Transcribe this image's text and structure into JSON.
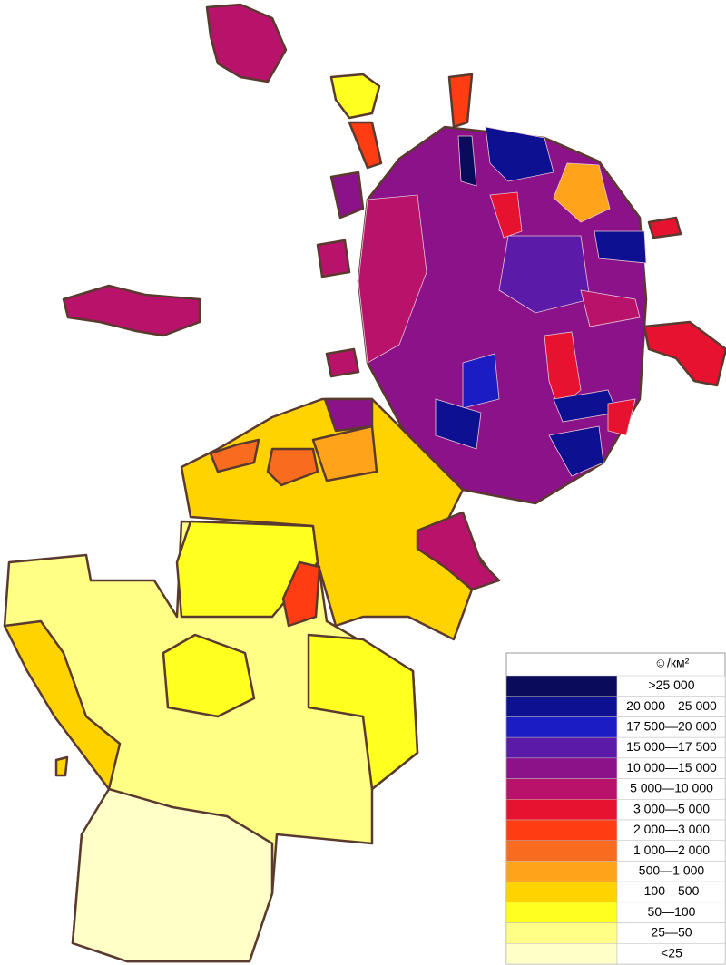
{
  "legend": {
    "title": "☺/км²",
    "items": [
      {
        "label": ">25 000",
        "color": "#0b0b5c"
      },
      {
        "label": "20 000—25 000",
        "color": "#0d1090"
      },
      {
        "label": "17 500—20 000",
        "color": "#1c1cc4"
      },
      {
        "label": "15 000—17 500",
        "color": "#5c1aa8"
      },
      {
        "label": "10 000—15 000",
        "color": "#8c1289"
      },
      {
        "label": "5 000—10 000",
        "color": "#b8126a"
      },
      {
        "label": "3 000—5 000",
        "color": "#e6122f"
      },
      {
        "label": "2 000—3 000",
        "color": "#ff3c12"
      },
      {
        "label": "1 000—2 000",
        "color": "#f96b1f"
      },
      {
        "label": "500—1 000",
        "color": "#ffa31a"
      },
      {
        "label": "100—500",
        "color": "#ffd300"
      },
      {
        "label": "50—100",
        "color": "#ffff20"
      },
      {
        "label": "25—50",
        "color": "#ffff85"
      },
      {
        "label": "<25",
        "color": "#ffffc8"
      }
    ]
  }
}
